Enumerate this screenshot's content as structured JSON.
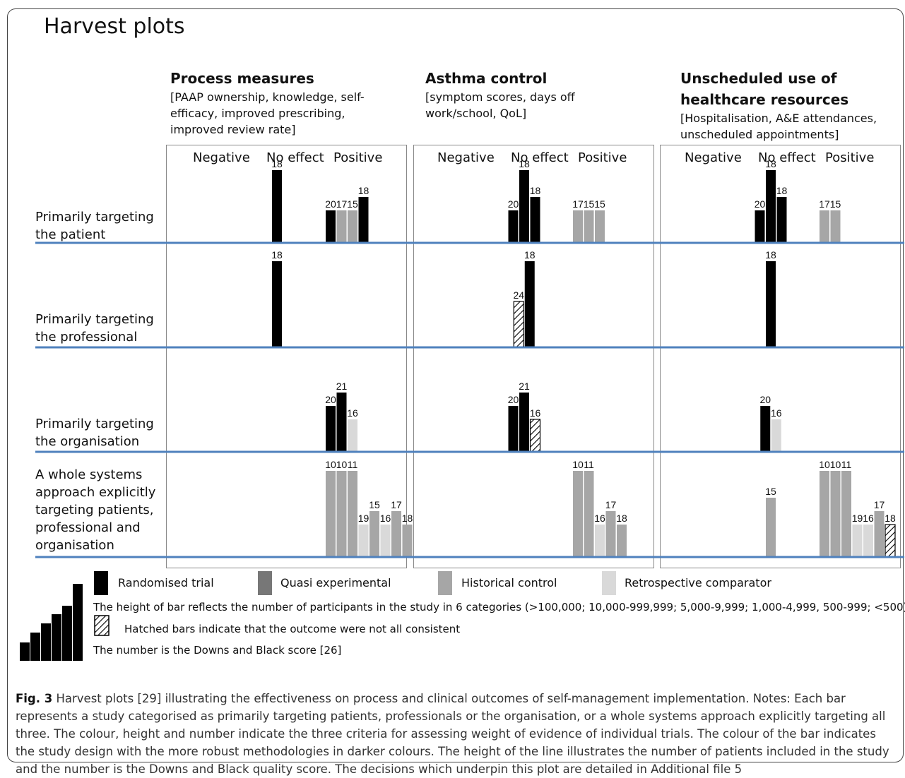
{
  "title": "Harvest plots",
  "columns": [
    {
      "heading": "Process measures",
      "sub": "[PAAP ownership, knowledge, self-efficacy, improved prescribing, improved review rate]"
    },
    {
      "heading": "Asthma control",
      "sub": "[symptom scores, days off work/school, QoL]"
    },
    {
      "heading": "Unscheduled use of healthcare resources",
      "sub": "[Hospitalisation, A&E attendances, unscheduled appointments]"
    }
  ],
  "effects": [
    "Negative",
    "No effect",
    "Positive"
  ],
  "rows": [
    "Primarily targeting the patient",
    "Primarily targeting the professional",
    "Primarily targeting the organisation",
    "A whole systems approach explicitly targeting patients, professional and organisation"
  ],
  "legend": {
    "items": [
      "Randomised trial",
      "Quasi experimental",
      "Historical control",
      "Retrospective comparator"
    ],
    "height_note": "The height of bar reflects the number of participants in the study in 6 categories (>100,000; 10,000-999,999; 5,000-9,999; 1,000-4,999, 500-999; <500)",
    "hatch_note": "Hatched bars indicate that the outcome were not all consistent",
    "number_note": "The number is the Downs and Black score [26]"
  },
  "caption": {
    "label": "Fig. 3",
    "text": "Harvest plots [29] illustrating the effectiveness on process and clinical outcomes of self-management implementation. Notes: Each bar represents a study categorised as primarily targeting patients, professionals or the organisation, or a whole systems approach explicitly targeting all three. The colour, height and number indicate the three criteria for assessing weight of evidence of individual trials. The colour of the bar indicates the study design with the more robust methodologies in darker colours. The height of the line illustrates the number of patients included in the study and the number is the Downs and Black quality score. The decisions which underpin this plot are detailed in Additional file 5"
  },
  "colors": {
    "randomised": "#000000",
    "quasi": "#777777",
    "historical": "#a6a6a6",
    "retrospective": "#d9d9d9",
    "baseline": "#4f81bd"
  },
  "chart_data": {
    "type": "bar",
    "height_scale": "1-6 participant categories",
    "panels": [
      {
        "column": "Process measures",
        "rows": [
          {
            "row": "Primarily targeting the patient",
            "bars": [
              {
                "effect": "No effect",
                "design": "randomised",
                "height": 5,
                "score": "18"
              },
              {
                "effect": "Positive",
                "design": "randomised",
                "height": 2,
                "score": "20"
              },
              {
                "effect": "Positive",
                "design": "historical",
                "height": 2,
                "score": "17"
              },
              {
                "effect": "Positive",
                "design": "historical",
                "height": 2,
                "score": "15"
              },
              {
                "effect": "Positive",
                "design": "randomised",
                "height": 3,
                "score": "18"
              }
            ]
          },
          {
            "row": "Primarily targeting the professional",
            "bars": [
              {
                "effect": "No effect",
                "design": "randomised",
                "height": 6,
                "score": "18"
              }
            ]
          },
          {
            "row": "Primarily targeting the organisation",
            "bars": [
              {
                "effect": "Positive",
                "design": "randomised",
                "height": 3,
                "score": "20"
              },
              {
                "effect": "Positive",
                "design": "randomised",
                "height": 4,
                "score": "21"
              },
              {
                "effect": "Positive",
                "design": "retrospective",
                "height": 2,
                "score": "16"
              }
            ]
          },
          {
            "row": "A whole systems approach explicitly targeting patients, professional and organisation",
            "bars": [
              {
                "effect": "Positive",
                "design": "historical",
                "height": 6,
                "score": "10"
              },
              {
                "effect": "Positive",
                "design": "historical",
                "height": 6,
                "score": "10"
              },
              {
                "effect": "Positive",
                "design": "historical",
                "height": 6,
                "score": "11"
              },
              {
                "effect": "Positive",
                "design": "retrospective",
                "height": 2,
                "score": "19"
              },
              {
                "effect": "Positive",
                "design": "historical",
                "height": 3,
                "score": "15"
              },
              {
                "effect": "Positive",
                "design": "retrospective",
                "height": 2,
                "score": "16"
              },
              {
                "effect": "Positive",
                "design": "historical",
                "height": 3,
                "score": "17"
              },
              {
                "effect": "Positive",
                "design": "historical",
                "height": 2,
                "score": "18"
              }
            ]
          }
        ]
      },
      {
        "column": "Asthma control",
        "rows": [
          {
            "row": "Primarily targeting the patient",
            "bars": [
              {
                "effect": "No effect",
                "design": "randomised",
                "height": 2,
                "score": "20"
              },
              {
                "effect": "No effect",
                "design": "randomised",
                "height": 5,
                "score": "18"
              },
              {
                "effect": "No effect",
                "design": "randomised",
                "height": 3,
                "score": "18"
              },
              {
                "effect": "Positive",
                "design": "historical",
                "height": 2,
                "score": "17"
              },
              {
                "effect": "Positive",
                "design": "historical",
                "height": 2,
                "score": "15"
              },
              {
                "effect": "Positive",
                "design": "historical",
                "height": 2,
                "score": "15"
              }
            ]
          },
          {
            "row": "Primarily targeting the professional",
            "bars": [
              {
                "effect": "No effect",
                "design": "randomised",
                "height": 3,
                "score": "24",
                "hatched": true
              },
              {
                "effect": "No effect",
                "design": "randomised",
                "height": 6,
                "score": "18"
              }
            ]
          },
          {
            "row": "Primarily targeting the organisation",
            "bars": [
              {
                "effect": "No effect",
                "design": "randomised",
                "height": 3,
                "score": "20"
              },
              {
                "effect": "No effect",
                "design": "randomised",
                "height": 4,
                "score": "21"
              },
              {
                "effect": "No effect",
                "design": "randomised",
                "height": 2,
                "score": "16",
                "hatched": true
              }
            ]
          },
          {
            "row": "A whole systems approach explicitly targeting patients, professional and organisation",
            "bars": [
              {
                "effect": "Positive",
                "design": "historical",
                "height": 6,
                "score": "10"
              },
              {
                "effect": "Positive",
                "design": "historical",
                "height": 6,
                "score": "11"
              },
              {
                "effect": "Positive",
                "design": "retrospective",
                "height": 2,
                "score": "16"
              },
              {
                "effect": "Positive",
                "design": "historical",
                "height": 3,
                "score": "17"
              },
              {
                "effect": "Positive",
                "design": "historical",
                "height": 2,
                "score": "18"
              }
            ]
          }
        ]
      },
      {
        "column": "Unscheduled use of healthcare resources",
        "rows": [
          {
            "row": "Primarily targeting the patient",
            "bars": [
              {
                "effect": "No effect",
                "design": "randomised",
                "height": 2,
                "score": "20"
              },
              {
                "effect": "No effect",
                "design": "randomised",
                "height": 5,
                "score": "18"
              },
              {
                "effect": "No effect",
                "design": "randomised",
                "height": 3,
                "score": "18"
              },
              {
                "effect": "Positive",
                "design": "historical",
                "height": 2,
                "score": "17"
              },
              {
                "effect": "Positive",
                "design": "historical",
                "height": 2,
                "score": "15"
              }
            ]
          },
          {
            "row": "Primarily targeting the professional",
            "bars": [
              {
                "effect": "No effect",
                "design": "randomised",
                "height": 6,
                "score": "18"
              }
            ]
          },
          {
            "row": "Primarily targeting the organisation",
            "bars": [
              {
                "effect": "No effect",
                "design": "randomised",
                "height": 3,
                "score": "20"
              },
              {
                "effect": "No effect",
                "design": "retrospective",
                "height": 2,
                "score": "16"
              }
            ]
          },
          {
            "row": "A whole systems approach explicitly targeting patients, professional and organisation",
            "bars": [
              {
                "effect": "No effect",
                "design": "historical",
                "height": 4,
                "score": "15"
              },
              {
                "effect": "Positive",
                "design": "historical",
                "height": 6,
                "score": "10"
              },
              {
                "effect": "Positive",
                "design": "historical",
                "height": 6,
                "score": "10"
              },
              {
                "effect": "Positive",
                "design": "historical",
                "height": 6,
                "score": "11"
              },
              {
                "effect": "Positive",
                "design": "retrospective",
                "height": 2,
                "score": "19"
              },
              {
                "effect": "Positive",
                "design": "retrospective",
                "height": 2,
                "score": "16"
              },
              {
                "effect": "Positive",
                "design": "historical",
                "height": 3,
                "score": "17"
              },
              {
                "effect": "Positive",
                "design": "randomised",
                "height": 2,
                "score": "18",
                "hatched": true
              }
            ]
          }
        ]
      }
    ]
  }
}
